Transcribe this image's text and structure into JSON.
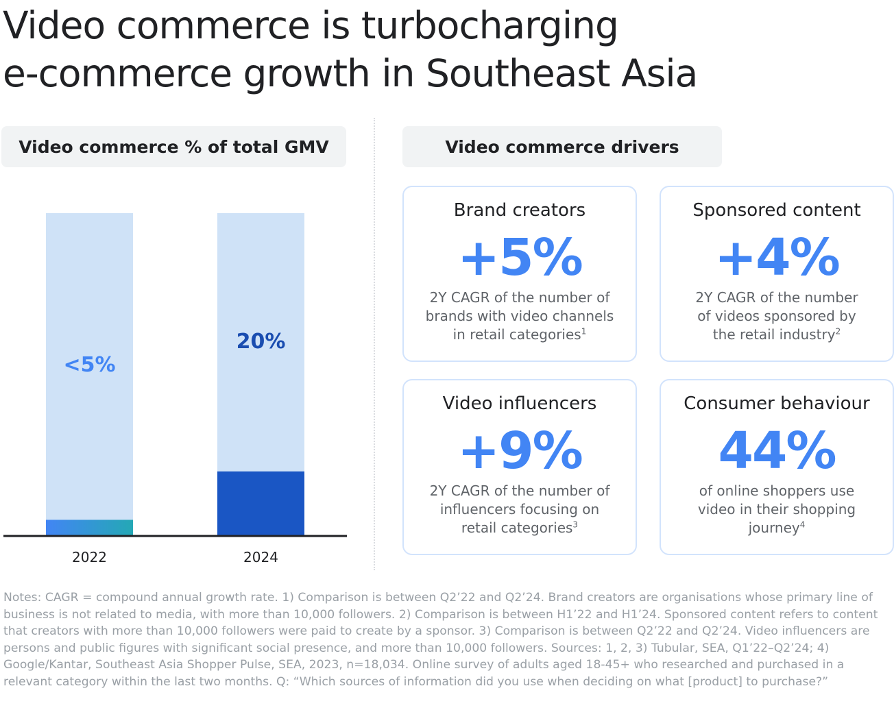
{
  "title": {
    "line1": "Video commerce is turbocharging",
    "line2": "e-commerce growth in Southeast Asia"
  },
  "left_section": {
    "heading": "Video commerce % of total GMV"
  },
  "right_section": {
    "heading": "Video commerce drivers"
  },
  "chart_data": {
    "type": "bar",
    "title": "Video commerce % of total GMV",
    "categories": [
      "2022",
      "2024"
    ],
    "values": [
      5,
      20
    ],
    "data_labels": [
      "<5%",
      "20%"
    ],
    "ylim": [
      0,
      100
    ],
    "grid": false,
    "colors": {
      "background_bar": "#cfe2f7",
      "bar_2022_start": "#4285f4",
      "bar_2022_end": "#24a8b5",
      "bar_2024": "#1a56c4",
      "label_2022": "#4285f4",
      "label_2024": "#1a4db0",
      "axis": "#202124"
    }
  },
  "drivers": [
    {
      "title": "Brand creators",
      "value": "+5%",
      "desc_line1": "2Y CAGR of the number of",
      "desc_line2": "brands with video channels",
      "desc_line3": "in retail categories",
      "footnote": "1"
    },
    {
      "title": "Sponsored content",
      "value": "+4%",
      "desc_line1": "2Y CAGR of the number",
      "desc_line2": "of videos sponsored by",
      "desc_line3": "the retail industry",
      "footnote": "2"
    },
    {
      "title": "Video influencers",
      "value": "+9%",
      "desc_line1": "2Y CAGR of the number of",
      "desc_line2": "influencers focusing on",
      "desc_line3": "retail categories",
      "footnote": "3"
    },
    {
      "title": "Consumer behaviour",
      "value": "44%",
      "desc_line1": "of online shoppers use",
      "desc_line2": "video in their shopping",
      "desc_line3": "journey",
      "footnote": "4"
    }
  ],
  "notes": "Notes: CAGR = compound annual growth rate. 1) Comparison is between Q2’22 and Q2’24. Brand creators are organisations whose primary line of business is not related to media, with more than 10,000 followers. 2) Comparison is between H1’22 and H1’24. Sponsored content refers to content that creators with more than 10,000 followers were paid to create by a sponsor. 3) Comparison is between Q2’22 and Q2’24. Video influencers are persons and public figures with significant social presence, and more than 10,000 followers. Sources: 1, 2, 3) Tubular, SEA, Q1’22–Q2’24; 4) Google/Kantar, Southeast Asia Shopper Pulse, SEA, 2023, n=18,034. Online survey of adults aged 18-45+ who researched and purchased in a relevant category within the last two months. Q: “Which sources of information did you use when deciding on what [product] to purchase?”"
}
